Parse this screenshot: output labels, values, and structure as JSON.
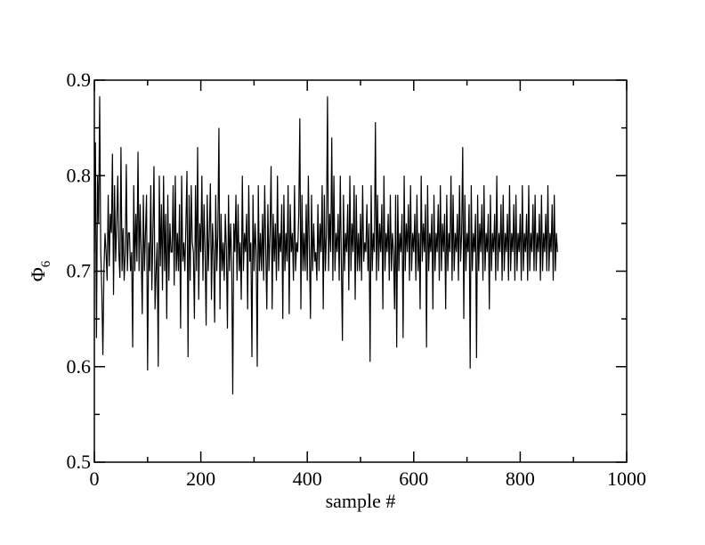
{
  "chart_data": {
    "type": "line",
    "title": "",
    "xlabel": "sample #",
    "ylabel": {
      "symbol": "Φ",
      "subscript": "6"
    },
    "xlim": [
      0,
      1000
    ],
    "ylim": [
      0.5,
      0.9
    ],
    "x_ticks": [
      0,
      200,
      400,
      600,
      800,
      1000
    ],
    "y_ticks": [
      0.5,
      0.6,
      0.7,
      0.8,
      0.9
    ],
    "x_tick_labels": [
      "0",
      "200",
      "400",
      "600",
      "800",
      "1000"
    ],
    "y_tick_labels": [
      "0.5",
      "0.6",
      "0.7",
      "0.8",
      "0.9"
    ],
    "grid": false,
    "legend": "none",
    "series": [
      {
        "color": "#000000",
        "x_start": 0,
        "x_step": 2,
        "values": [
          0.72,
          0.835,
          0.63,
          0.8,
          0.75,
          0.883,
          0.72,
          0.68,
          0.612,
          0.7,
          0.74,
          0.72,
          0.69,
          0.78,
          0.705,
          0.76,
          0.74,
          0.823,
          0.675,
          0.79,
          0.71,
          0.75,
          0.8,
          0.72,
          0.693,
          0.83,
          0.7,
          0.745,
          0.69,
          0.72,
          0.812,
          0.7,
          0.74,
          0.74,
          0.7,
          0.72,
          0.62,
          0.79,
          0.7,
          0.76,
          0.71,
          0.825,
          0.7,
          0.77,
          0.72,
          0.655,
          0.78,
          0.7,
          0.74,
          0.78,
          0.596,
          0.73,
          0.7,
          0.79,
          0.68,
          0.74,
          0.81,
          0.66,
          0.7,
          0.73,
          0.6,
          0.8,
          0.705,
          0.77,
          0.68,
          0.8,
          0.7,
          0.76,
          0.65,
          0.78,
          0.69,
          0.75,
          0.72,
          0.72,
          0.79,
          0.685,
          0.8,
          0.7,
          0.74,
          0.7,
          0.77,
          0.64,
          0.8,
          0.71,
          0.73,
          0.7,
          0.75,
          0.805,
          0.61,
          0.78,
          0.69,
          0.79,
          0.73,
          0.72,
          0.65,
          0.79,
          0.7,
          0.83,
          0.67,
          0.75,
          0.72,
          0.8,
          0.69,
          0.77,
          0.72,
          0.643,
          0.78,
          0.7,
          0.74,
          0.792,
          0.67,
          0.75,
          0.72,
          0.646,
          0.78,
          0.7,
          0.74,
          0.85,
          0.66,
          0.76,
          0.7,
          0.73,
          0.69,
          0.76,
          0.723,
          0.64,
          0.78,
          0.7,
          0.75,
          0.71,
          0.571,
          0.75,
          0.72,
          0.78,
          0.69,
          0.77,
          0.7,
          0.73,
          0.67,
          0.8,
          0.7,
          0.74,
          0.72,
          0.76,
          0.66,
          0.79,
          0.71,
          0.73,
          0.61,
          0.78,
          0.7,
          0.75,
          0.72,
          0.6,
          0.79,
          0.7,
          0.74,
          0.7,
          0.76,
          0.69,
          0.79,
          0.72,
          0.66,
          0.77,
          0.7,
          0.74,
          0.81,
          0.66,
          0.76,
          0.71,
          0.75,
          0.69,
          0.8,
          0.7,
          0.74,
          0.72,
          0.77,
          0.65,
          0.78,
          0.7,
          0.74,
          0.71,
          0.79,
          0.655,
          0.77,
          0.72,
          0.74,
          0.69,
          0.79,
          0.7,
          0.73,
          0.72,
          0.76,
          0.86,
          0.66,
          0.78,
          0.7,
          0.74,
          0.7,
          0.77,
          0.69,
          0.8,
          0.72,
          0.65,
          0.78,
          0.7,
          0.75,
          0.71,
          0.72,
          0.69,
          0.77,
          0.7,
          0.75,
          0.72,
          0.79,
          0.66,
          0.78,
          0.7,
          0.74,
          0.883,
          0.7,
          0.76,
          0.72,
          0.84,
          0.69,
          0.8,
          0.7,
          0.74,
          0.72,
          0.76,
          0.69,
          0.8,
          0.71,
          0.627,
          0.78,
          0.7,
          0.74,
          0.72,
          0.77,
          0.68,
          0.8,
          0.7,
          0.75,
          0.72,
          0.79,
          0.67,
          0.78,
          0.7,
          0.74,
          0.7,
          0.76,
          0.69,
          0.79,
          0.71,
          0.73,
          0.72,
          0.77,
          0.7,
          0.75,
          0.605,
          0.79,
          0.7,
          0.74,
          0.72,
          0.856,
          0.69,
          0.78,
          0.7,
          0.75,
          0.72,
          0.77,
          0.66,
          0.8,
          0.7,
          0.74,
          0.72,
          0.76,
          0.69,
          0.78,
          0.7,
          0.74,
          0.72,
          0.66,
          0.78,
          0.62,
          0.78,
          0.7,
          0.74,
          0.72,
          0.76,
          0.63,
          0.8,
          0.7,
          0.75,
          0.72,
          0.77,
          0.69,
          0.79,
          0.7,
          0.74,
          0.72,
          0.76,
          0.69,
          0.78,
          0.7,
          0.74,
          0.66,
          0.8,
          0.71,
          0.75,
          0.72,
          0.77,
          0.62,
          0.79,
          0.7,
          0.74,
          0.72,
          0.76,
          0.66,
          0.78,
          0.7,
          0.74,
          0.72,
          0.77,
          0.69,
          0.79,
          0.7,
          0.75,
          0.72,
          0.76,
          0.66,
          0.78,
          0.7,
          0.74,
          0.72,
          0.8,
          0.69,
          0.78,
          0.7,
          0.74,
          0.72,
          0.76,
          0.69,
          0.79,
          0.71,
          0.74,
          0.83,
          0.65,
          0.78,
          0.7,
          0.74,
          0.72,
          0.77,
          0.598,
          0.79,
          0.7,
          0.74,
          0.72,
          0.76,
          0.609,
          0.78,
          0.7,
          0.75,
          0.72,
          0.77,
          0.69,
          0.79,
          0.7,
          0.74,
          0.72,
          0.76,
          0.66,
          0.78,
          0.7,
          0.74,
          0.72,
          0.76,
          0.69,
          0.8,
          0.7,
          0.74,
          0.72,
          0.77,
          0.69,
          0.78,
          0.7,
          0.74,
          0.72,
          0.76,
          0.69,
          0.79,
          0.7,
          0.74,
          0.72,
          0.77,
          0.69,
          0.78,
          0.7,
          0.74,
          0.72,
          0.76,
          0.69,
          0.79,
          0.7,
          0.74,
          0.72,
          0.76,
          0.69,
          0.79,
          0.7,
          0.74,
          0.72,
          0.77,
          0.7,
          0.78,
          0.7,
          0.74,
          0.72,
          0.76,
          0.69,
          0.78,
          0.7,
          0.74,
          0.72,
          0.76,
          0.7,
          0.79,
          0.7,
          0.74,
          0.72,
          0.77,
          0.69,
          0.78,
          0.7,
          0.74,
          0.72
        ]
      }
    ]
  }
}
